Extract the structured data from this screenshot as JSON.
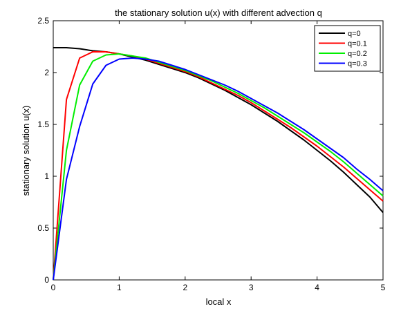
{
  "chart_data": {
    "type": "line",
    "title": "the stationary solution u(x) with different advection q",
    "xlabel": "local x",
    "ylabel": "stationary solution u(x)",
    "xlim": [
      0,
      5
    ],
    "ylim": [
      0,
      2.5
    ],
    "xticks": [
      "0",
      "1",
      "2",
      "3",
      "4",
      "5"
    ],
    "yticks": [
      "0",
      "0.5",
      "1",
      "1.5",
      "2",
      "2.5"
    ],
    "grid": false,
    "legend_position": "top-right",
    "series": [
      {
        "name": "q=0",
        "color": "#000000",
        "x": [
          0,
          0.2,
          0.4,
          0.6,
          0.8,
          1.0,
          1.2,
          1.4,
          1.6,
          1.8,
          2.0,
          2.2,
          2.4,
          2.6,
          2.8,
          3.0,
          3.2,
          3.4,
          3.6,
          3.8,
          4.0,
          4.2,
          4.4,
          4.6,
          4.8,
          5.0
        ],
        "y": [
          2.24,
          2.24,
          2.23,
          2.21,
          2.2,
          2.18,
          2.15,
          2.12,
          2.08,
          2.04,
          2.0,
          1.95,
          1.89,
          1.83,
          1.76,
          1.69,
          1.61,
          1.53,
          1.44,
          1.35,
          1.25,
          1.15,
          1.04,
          0.92,
          0.8,
          0.65
        ]
      },
      {
        "name": "q=0.1",
        "color": "#ff0000",
        "x": [
          0,
          0.2,
          0.4,
          0.6,
          0.8,
          1.0,
          1.2,
          1.4,
          1.6,
          1.8,
          2.0,
          2.2,
          2.4,
          2.6,
          2.8,
          3.0,
          3.2,
          3.4,
          3.6,
          3.8,
          4.0,
          4.2,
          4.4,
          4.6,
          4.8,
          5.0
        ],
        "y": [
          0.0,
          1.74,
          2.14,
          2.2,
          2.2,
          2.18,
          2.16,
          2.13,
          2.09,
          2.05,
          2.01,
          1.96,
          1.9,
          1.84,
          1.78,
          1.71,
          1.63,
          1.55,
          1.47,
          1.38,
          1.29,
          1.19,
          1.09,
          0.98,
          0.87,
          0.76
        ]
      },
      {
        "name": "q=0.2",
        "color": "#00ee00",
        "x": [
          0,
          0.2,
          0.4,
          0.6,
          0.8,
          1.0,
          1.2,
          1.4,
          1.6,
          1.8,
          2.0,
          2.2,
          2.4,
          2.6,
          2.8,
          3.0,
          3.2,
          3.4,
          3.6,
          3.8,
          4.0,
          4.2,
          4.4,
          4.6,
          4.8,
          5.0
        ],
        "y": [
          0.0,
          1.25,
          1.88,
          2.11,
          2.17,
          2.18,
          2.16,
          2.14,
          2.1,
          2.06,
          2.02,
          1.97,
          1.92,
          1.86,
          1.8,
          1.73,
          1.66,
          1.58,
          1.5,
          1.42,
          1.33,
          1.24,
          1.14,
          1.03,
          0.92,
          0.81
        ]
      },
      {
        "name": "q=0.3",
        "color": "#0000ff",
        "x": [
          0,
          0.2,
          0.4,
          0.6,
          0.8,
          1.0,
          1.2,
          1.4,
          1.6,
          1.8,
          2.0,
          2.2,
          2.4,
          2.6,
          2.8,
          3.0,
          3.2,
          3.4,
          3.6,
          3.8,
          4.0,
          4.2,
          4.4,
          4.6,
          4.8,
          5.0
        ],
        "y": [
          0.0,
          0.97,
          1.48,
          1.89,
          2.07,
          2.13,
          2.14,
          2.13,
          2.11,
          2.07,
          2.03,
          1.98,
          1.93,
          1.88,
          1.82,
          1.75,
          1.68,
          1.61,
          1.53,
          1.45,
          1.36,
          1.27,
          1.18,
          1.07,
          0.97,
          0.86
        ]
      }
    ]
  }
}
